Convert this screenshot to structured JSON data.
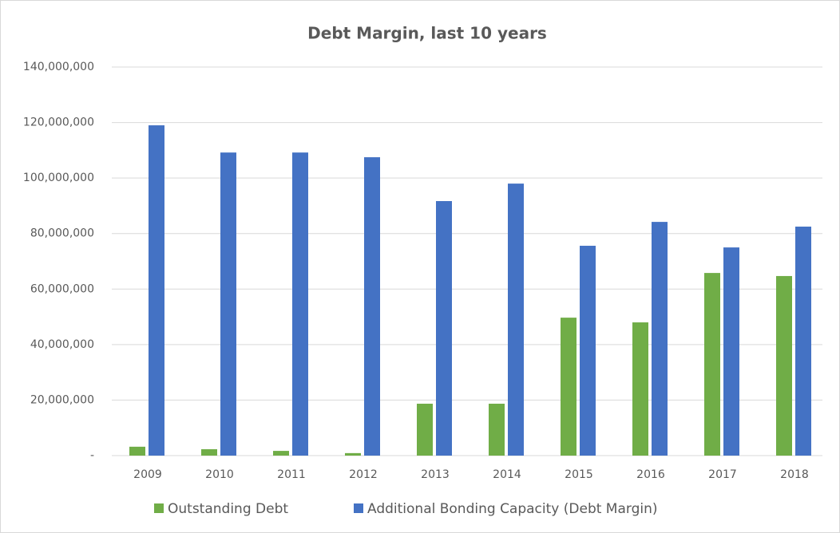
{
  "chart_data": {
    "type": "bar",
    "title": "Debt Margin, last 10 years",
    "categories": [
      "2009",
      "2010",
      "2011",
      "2012",
      "2013",
      "2014",
      "2015",
      "2016",
      "2017",
      "2018"
    ],
    "series": [
      {
        "name": "Outstanding Debt",
        "color": "#70ad47",
        "values": [
          3200000,
          2300000,
          1700000,
          900000,
          18700000,
          18700000,
          49700000,
          48000000,
          65800000,
          64700000
        ]
      },
      {
        "name": "Additional Bonding Capacity (Debt Margin)",
        "color": "#4472c4",
        "values": [
          119000000,
          109200000,
          109200000,
          107500000,
          91700000,
          98000000,
          75600000,
          84200000,
          75000000,
          82500000
        ]
      }
    ],
    "ylim": [
      0,
      140000000
    ],
    "yticks": [
      {
        "value": 0,
        "label": "-"
      },
      {
        "value": 20000000,
        "label": "20,000,000"
      },
      {
        "value": 40000000,
        "label": "40,000,000"
      },
      {
        "value": 60000000,
        "label": "60,000,000"
      },
      {
        "value": 80000000,
        "label": "80,000,000"
      },
      {
        "value": 100000000,
        "label": "100,000,000"
      },
      {
        "value": 120000000,
        "label": "120,000,000"
      },
      {
        "value": 140000000,
        "label": "140,000,000"
      }
    ],
    "grid": true,
    "legend": "bottom"
  }
}
